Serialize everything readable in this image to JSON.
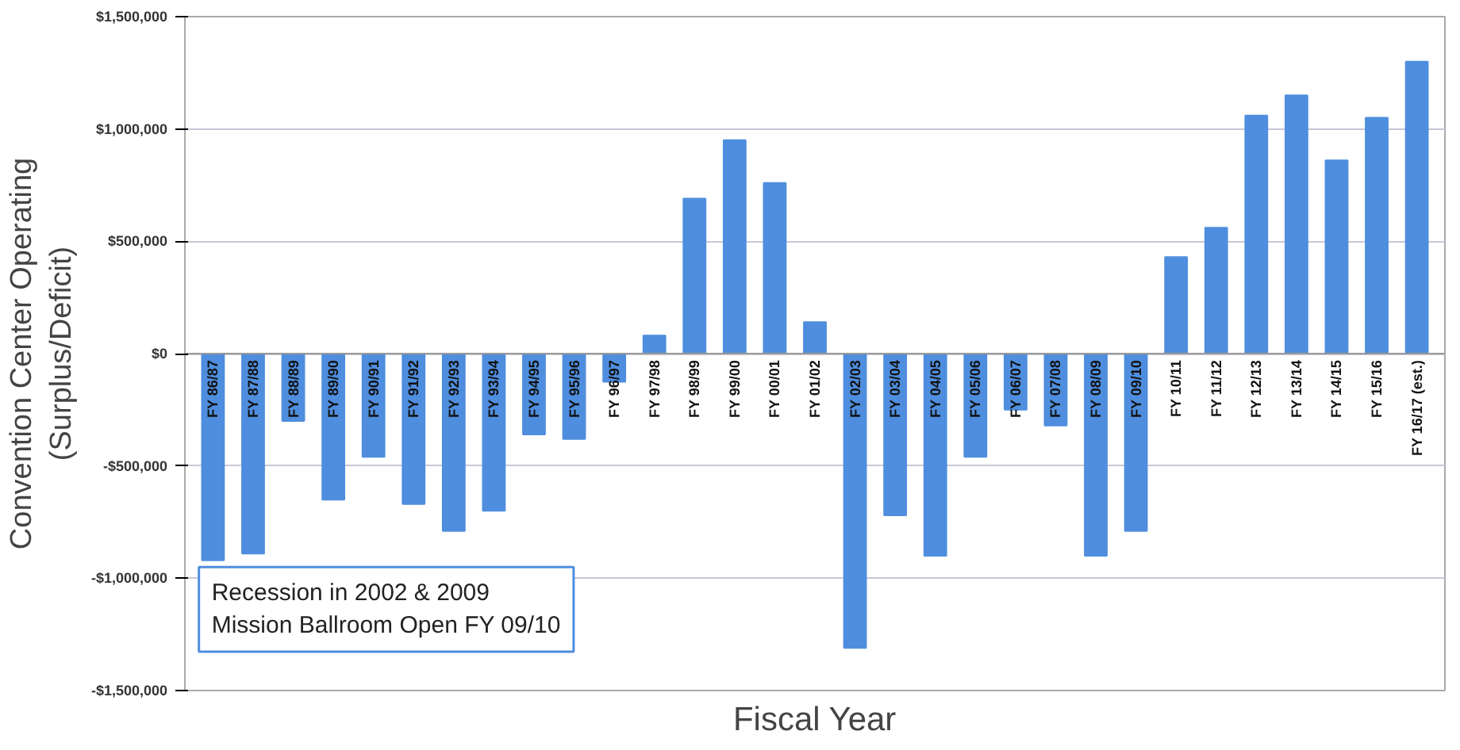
{
  "chart_data": {
    "type": "bar",
    "xlabel": "Fiscal Year",
    "ylabel": "Convention Center Operating\n(Surplus/Deficit)",
    "categories": [
      "FY 86/87",
      "FY 87/88",
      "FY 88/89",
      "FY 89/90",
      "FY 90/91",
      "FY 91/92",
      "FY 92/93",
      "FY 93/94",
      "FY 94/95",
      "FY 95/96",
      "FY 96/97",
      "FY 97/98",
      "FY 98/99",
      "FY 99/00",
      "FY 00/01",
      "FY 01/02",
      "FY 02/03",
      "FY 03/04",
      "FY 04/05",
      "FY 05/06",
      "FY 06/07",
      "FY 07/08",
      "FY 08/09",
      "FY 09/10",
      "FY 10/11",
      "FY 11/12",
      "FY 12/13",
      "FY 13/14",
      "FY 14/15",
      "FY 15/16",
      "FY 16/17 (est.)"
    ],
    "values": [
      -920000,
      -890000,
      -300000,
      -650000,
      -460000,
      -670000,
      -790000,
      -700000,
      -360000,
      -380000,
      -125000,
      80000,
      690000,
      950000,
      760000,
      140000,
      -1310000,
      -720000,
      -900000,
      -460000,
      -250000,
      -320000,
      -900000,
      -790000,
      430000,
      560000,
      1060000,
      1150000,
      860000,
      1050000,
      1300000
    ],
    "color": "#4f8ede",
    "ylim": [
      -1500000,
      1500000
    ],
    "yticks": [
      {
        "value": -1500000,
        "label": "-$1,500,000"
      },
      {
        "value": -1000000,
        "label": "-$1,000,000"
      },
      {
        "value": -500000,
        "label": "-$500,000"
      },
      {
        "value": 0,
        "label": "$0"
      },
      {
        "value": 500000,
        "label": "$500,000"
      },
      {
        "value": 1000000,
        "label": "$1,000,000"
      },
      {
        "value": 1500000,
        "label": "$1,500,000"
      }
    ],
    "grid": "y",
    "annotations": [
      "Recession in 2002 & 2009",
      "Mission Ballroom Open FY 09/10"
    ]
  }
}
